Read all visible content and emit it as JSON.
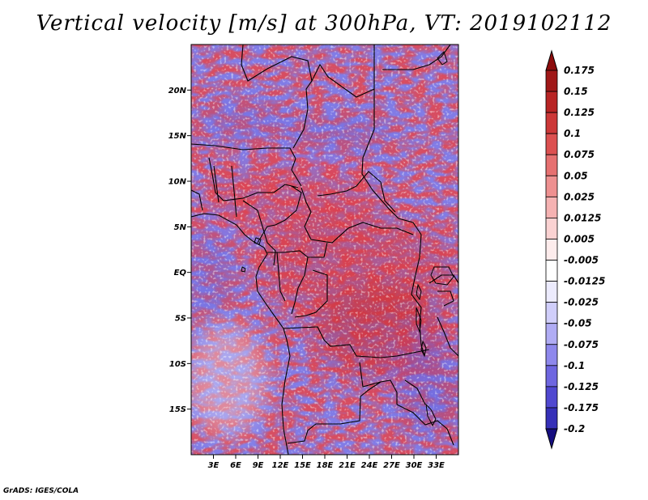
{
  "title": "Vertical velocity [m/s] at 300hPa, VT: 2019102112",
  "credit": "GrADS: IGES/COLA",
  "map": {
    "lon_range": [
      0,
      36
    ],
    "lat_range": [
      -20,
      25
    ],
    "lat_ticks": [
      {
        "value": 20,
        "label": "20N"
      },
      {
        "value": 15,
        "label": "15N"
      },
      {
        "value": 10,
        "label": "10N"
      },
      {
        "value": 5,
        "label": "5N"
      },
      {
        "value": 0,
        "label": "EQ"
      },
      {
        "value": -5,
        "label": "5S"
      },
      {
        "value": -10,
        "label": "10S"
      },
      {
        "value": -15,
        "label": "15S"
      }
    ],
    "lon_ticks": [
      {
        "value": 3,
        "label": "3E"
      },
      {
        "value": 6,
        "label": "6E"
      },
      {
        "value": 9,
        "label": "9E"
      },
      {
        "value": 12,
        "label": "12E"
      },
      {
        "value": 15,
        "label": "15E"
      },
      {
        "value": 18,
        "label": "18E"
      },
      {
        "value": 21,
        "label": "21E"
      },
      {
        "value": 24,
        "label": "24E"
      },
      {
        "value": 27,
        "label": "27E"
      },
      {
        "value": 30,
        "label": "30E"
      },
      {
        "value": 33,
        "label": "33E"
      }
    ]
  },
  "colorbar": {
    "levels": [
      {
        "label": "0.175",
        "color": "#a01818"
      },
      {
        "label": "0.15",
        "color": "#b82424"
      },
      {
        "label": "0.125",
        "color": "#cc3838"
      },
      {
        "label": "0.1",
        "color": "#dc5050"
      },
      {
        "label": "0.075",
        "color": "#e67070"
      },
      {
        "label": "0.05",
        "color": "#ee9090"
      },
      {
        "label": "0.025",
        "color": "#f5b2b2"
      },
      {
        "label": "0.0125",
        "color": "#fad2d2"
      },
      {
        "label": "0.005",
        "color": "#fdecec"
      },
      {
        "label": "-0.005",
        "color": "#ffffff"
      },
      {
        "label": "-0.0125",
        "color": "#ecebfd"
      },
      {
        "label": "-0.025",
        "color": "#d0cefa"
      },
      {
        "label": "-0.05",
        "color": "#b0acf4"
      },
      {
        "label": "-0.075",
        "color": "#8e88ec"
      },
      {
        "label": "-0.1",
        "color": "#6e66e0"
      },
      {
        "label": "-0.125",
        "color": "#5048d0"
      },
      {
        "label": "-0.175",
        "color": "#3630b8"
      },
      {
        "label": "-0.2",
        "color": "#221c9c"
      }
    ],
    "top_color": "#8c0c0c",
    "bottom_color": "#160e80"
  }
}
